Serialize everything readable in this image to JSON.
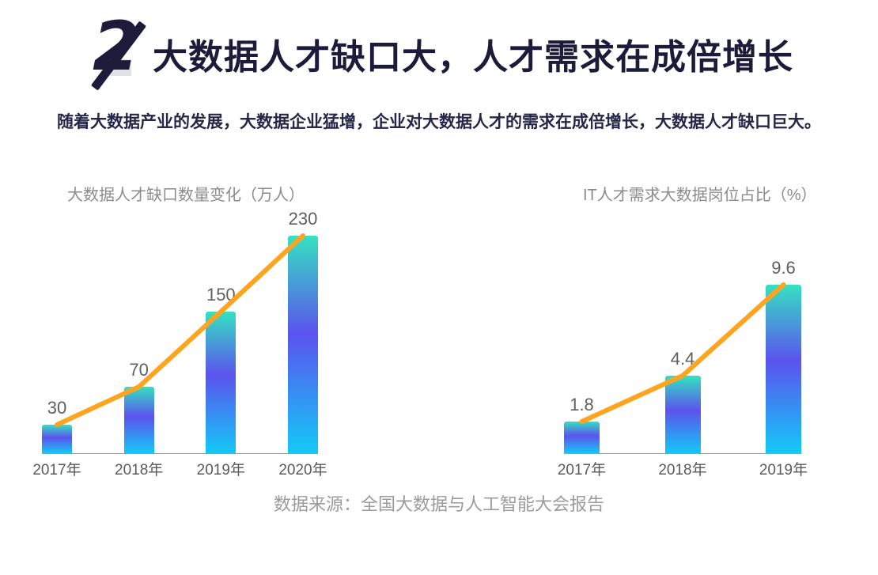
{
  "header": {
    "icon_number": "2",
    "title": "大数据人才缺口大，人才需求在成倍增长",
    "subtitle": "随着大数据产业的发展，大数据企业猛增，企业对大数据人才的需求在成倍增长，大数据人才缺口巨大。"
  },
  "footer": {
    "source": "数据来源：全国大数据与人工智能大会报告"
  },
  "colors": {
    "title_navy": "#1c1c3a",
    "accent_orange": "#FFA41E",
    "bar_gradient_top": "#35E1C1",
    "bar_gradient_mid": "#5B53EE",
    "bar_gradient_bottom": "#14C9F7",
    "axis_gray": "#9a9a9a",
    "label_gray": "#5f5f5f",
    "chart_title_gray": "#8b8b8b"
  },
  "chart_data": [
    {
      "type": "bar",
      "line_overlay": true,
      "title": "大数据人才缺口数量变化（万人）",
      "categories": [
        "2017年",
        "2018年",
        "2019年",
        "2020年"
      ],
      "values": [
        30,
        70,
        150,
        230
      ],
      "value_labels": [
        "30",
        "70",
        "150",
        "230"
      ],
      "ylim": [
        0,
        230
      ],
      "grid": false,
      "legend": false
    },
    {
      "type": "bar",
      "line_overlay": true,
      "title": "IT人才需求大数据岗位占比（%）",
      "categories": [
        "2017年",
        "2018年",
        "2019年"
      ],
      "values": [
        1.8,
        4.4,
        9.6
      ],
      "value_labels": [
        "1.8",
        "4.4",
        "9.6"
      ],
      "ylim": [
        0,
        9.6
      ],
      "grid": false,
      "legend": false
    }
  ]
}
